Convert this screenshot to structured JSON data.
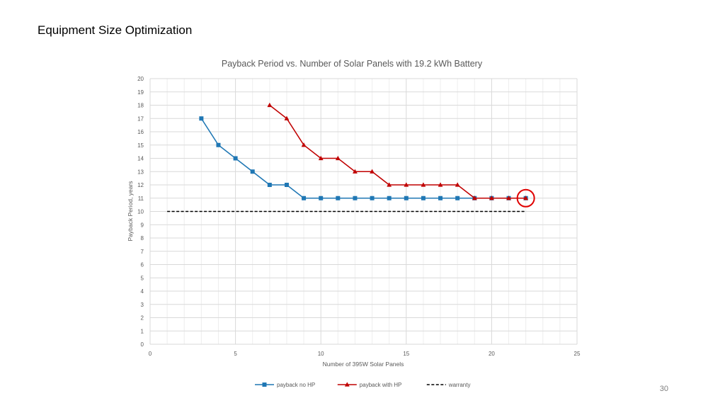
{
  "slide": {
    "title": "Equipment Size Optimization",
    "page_number": "30"
  },
  "chart_data": {
    "type": "line",
    "title": "Payback Period vs. Number of Solar Panels with 19.2 kWh Battery",
    "xlabel": "Number of 395W Solar Panels",
    "ylabel": "Payback Period, years",
    "xlim": [
      0,
      25
    ],
    "ylim": [
      0,
      20
    ],
    "x_ticks": [
      0,
      5,
      10,
      15,
      20,
      25
    ],
    "y_ticks": [
      0,
      1,
      2,
      3,
      4,
      5,
      6,
      7,
      8,
      9,
      10,
      11,
      12,
      13,
      14,
      15,
      16,
      17,
      18,
      19,
      20
    ],
    "grid": true,
    "legend_position": "bottom",
    "series": [
      {
        "name": "payback no HP",
        "color": "#1f77b4",
        "marker": "square",
        "line_style": "solid",
        "x": [
          3,
          4,
          5,
          6,
          7,
          8,
          9,
          10,
          11,
          12,
          13,
          14,
          15,
          16,
          17,
          18,
          19,
          20,
          21,
          22
        ],
        "y": [
          17,
          15,
          14,
          13,
          12,
          12,
          11,
          11,
          11,
          11,
          11,
          11,
          11,
          11,
          11,
          11,
          11,
          11,
          11,
          11
        ]
      },
      {
        "name": "payback with HP",
        "color": "#c00000",
        "marker": "triangle",
        "line_style": "solid",
        "x": [
          7,
          8,
          9,
          10,
          11,
          12,
          13,
          14,
          15,
          16,
          17,
          18,
          19,
          20,
          21,
          22
        ],
        "y": [
          18,
          17,
          15,
          14,
          14,
          13,
          13,
          12,
          12,
          12,
          12,
          12,
          11,
          11,
          11,
          11
        ]
      },
      {
        "name": "warranty",
        "color": "#000000",
        "marker": "none",
        "line_style": "dashed",
        "x": [
          1,
          22
        ],
        "y": [
          10,
          10
        ]
      }
    ],
    "annotations": [
      {
        "type": "circle",
        "x": 22,
        "y": 11,
        "color": "#e00000"
      }
    ]
  }
}
